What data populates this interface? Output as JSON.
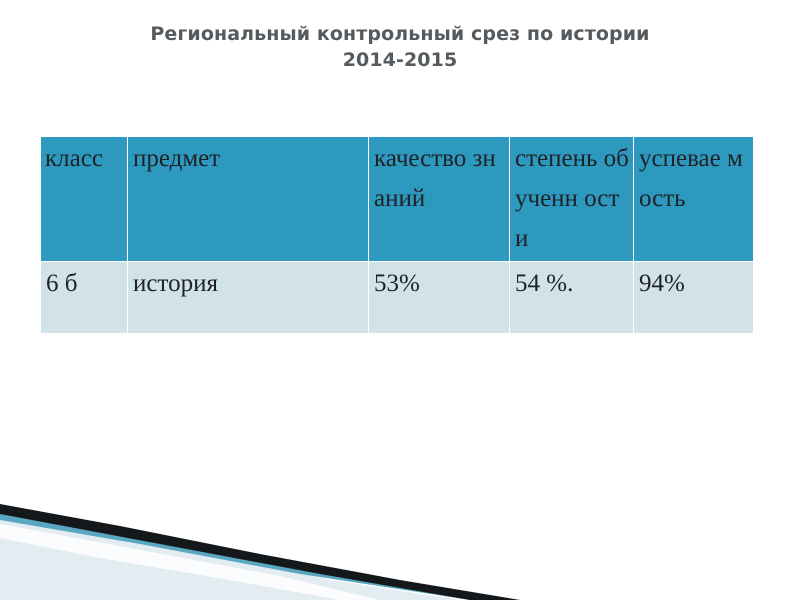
{
  "title": {
    "line1": "Региональный контрольный срез по истории",
    "line2": "2014-2015"
  },
  "table": {
    "headers": {
      "class": "класс",
      "subject": "предмет",
      "quality": "качество знаний",
      "degree": "степень обученн ости",
      "progress": "успевае мость"
    },
    "rows": [
      {
        "class": "6 б",
        "subject": "история",
        "quality": "53%",
        "degree": "54  %.",
        "progress": "94%"
      }
    ]
  },
  "colors": {
    "header_bg": "#2e99bf",
    "row_bg": "#d2e2e9",
    "title_text": "#555a5e"
  }
}
